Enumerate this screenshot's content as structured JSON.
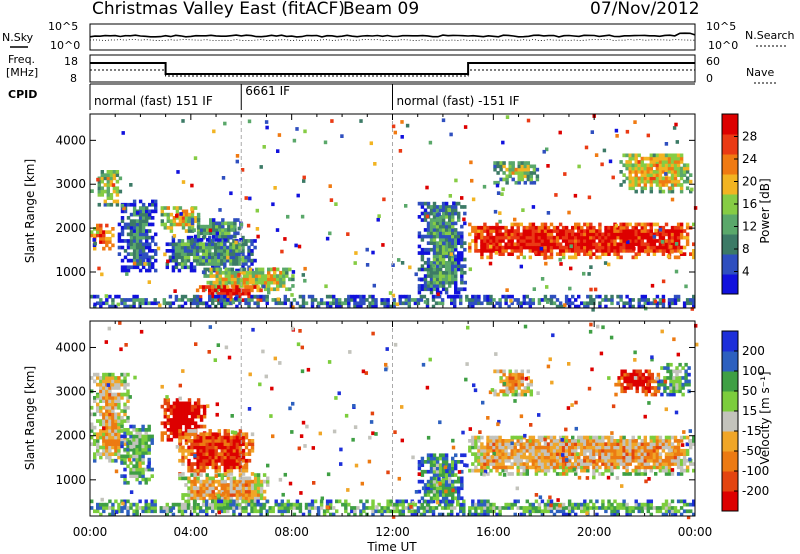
{
  "header": {
    "title": "Christmas Valley East (fitACF)",
    "beam": "Beam 09",
    "date": "07/Nov/2012"
  },
  "summary_panels": {
    "nsky_label": "N.Sky",
    "nsearch_label": "N.Search",
    "noise_ticks": [
      "10^5",
      "10^0"
    ],
    "freq_label_line1": "Freq.",
    "freq_label_line2": "[MHz]",
    "freq_ticks": [
      "18",
      "8"
    ],
    "nave_label": "Nave",
    "nave_ticks": [
      "60",
      "0"
    ],
    "cpid_label": "CPID",
    "cpid_segments": [
      {
        "label": "normal (fast) 151 IF",
        "start_hour": 0,
        "end_hour": 6
      },
      {
        "label": "6661 IF",
        "start_hour": 6,
        "end_hour": 12
      },
      {
        "label": "normal (fast) -151 IF",
        "start_hour": 12,
        "end_hour": 24
      }
    ]
  },
  "colors": {
    "power_scale": [
      "#1111dd",
      "#2f4fbf",
      "#3c7a66",
      "#5aa86a",
      "#86cc44",
      "#f2b422",
      "#f07a12",
      "#ea3a14",
      "#dd0000"
    ],
    "velocity_scale": [
      "#1d2fd9",
      "#2d60bf",
      "#3f9f44",
      "#7ccd3c",
      "#c3c3bc",
      "#f0a628",
      "#ec7a12",
      "#e3440f",
      "#dd0000"
    ],
    "ground_scatter": "#c3c3bc"
  },
  "chart_data": [
    {
      "type": "heatmap",
      "panel": "power",
      "xlabel": "",
      "ylabel": "Slant Range [km]",
      "xlim": [
        0,
        24
      ],
      "ylim": [
        180,
        4600
      ],
      "yticks": [
        "1000",
        "2000",
        "3000",
        "4000"
      ],
      "colorbar": {
        "label": "Power [dB]",
        "ticks": [
          "4",
          "8",
          "12",
          "16",
          "20",
          "24",
          "28"
        ],
        "range": [
          0,
          32
        ]
      },
      "regions": [
        {
          "t0": 0.0,
          "t1": 0.9,
          "r0": 1500,
          "r1": 2100,
          "level": 0.75
        },
        {
          "t0": 0.3,
          "t1": 1.2,
          "r0": 2500,
          "r1": 3300,
          "level": 0.5
        },
        {
          "t0": 1.1,
          "t1": 2.6,
          "r0": 1000,
          "r1": 2600,
          "level": 0.15
        },
        {
          "t0": 2.8,
          "t1": 4.3,
          "r0": 1900,
          "r1": 2500,
          "level": 0.55
        },
        {
          "t0": 3.0,
          "t1": 6.5,
          "r0": 1000,
          "r1": 1800,
          "level": 0.2
        },
        {
          "t0": 4.0,
          "t1": 6.0,
          "r0": 1700,
          "r1": 2200,
          "level": 0.25
        },
        {
          "t0": 4.5,
          "t1": 8.0,
          "r0": 500,
          "r1": 1100,
          "level": 0.45
        },
        {
          "t0": 4.2,
          "t1": 6.8,
          "r0": 250,
          "r1": 700,
          "level": 0.85
        },
        {
          "t0": 0.0,
          "t1": 24.0,
          "r0": 180,
          "r1": 420,
          "level": 0.25
        },
        {
          "t0": 13.0,
          "t1": 14.9,
          "r0": 500,
          "r1": 2600,
          "level": 0.2
        },
        {
          "t0": 15.0,
          "t1": 23.9,
          "r0": 1300,
          "r1": 2100,
          "level": 0.8
        },
        {
          "t0": 16.0,
          "t1": 17.7,
          "r0": 3000,
          "r1": 3500,
          "level": 0.4
        },
        {
          "t0": 21.0,
          "t1": 23.8,
          "r0": 2800,
          "r1": 3700,
          "level": 0.5
        }
      ]
    },
    {
      "type": "heatmap",
      "panel": "velocity",
      "xlabel": "Time UT",
      "ylabel": "Slant Range [km]",
      "xlim": [
        0,
        24
      ],
      "ylim": [
        180,
        4600
      ],
      "xticks": [
        "00:00",
        "04:00",
        "08:00",
        "12:00",
        "16:00",
        "20:00",
        "00:00"
      ],
      "yticks": [
        "1000",
        "2000",
        "3000",
        "4000"
      ],
      "colorbar": {
        "label": "Velocity [m s⁻¹]",
        "ticks": [
          "200",
          "100",
          "50",
          "15",
          "-15",
          "-50",
          "-100",
          "-200"
        ],
        "range": [
          -250,
          250
        ]
      },
      "regions": [
        {
          "t0": 0.0,
          "t1": 1.5,
          "r0": 1400,
          "r1": 3400,
          "level": 0.5
        },
        {
          "t0": 1.2,
          "t1": 2.5,
          "r0": 900,
          "r1": 2200,
          "level": 0.3
        },
        {
          "t0": 2.8,
          "t1": 4.5,
          "r0": 1800,
          "r1": 2800,
          "level": 0.95
        },
        {
          "t0": 3.5,
          "t1": 6.5,
          "r0": 1100,
          "r1": 2100,
          "level": 0.75
        },
        {
          "t0": 3.5,
          "t1": 7.0,
          "r0": 400,
          "r1": 1100,
          "level": 0.5
        },
        {
          "t0": 0.0,
          "t1": 24.0,
          "r0": 180,
          "r1": 500,
          "level": 0.3
        },
        {
          "t0": 13.0,
          "t1": 14.8,
          "r0": 400,
          "r1": 1600,
          "level": 0.2
        },
        {
          "t0": 15.0,
          "t1": 23.9,
          "r0": 1100,
          "r1": 2000,
          "level": 0.5
        },
        {
          "t0": 16.0,
          "t1": 17.5,
          "r0": 2900,
          "r1": 3500,
          "level": 0.6
        },
        {
          "t0": 20.8,
          "t1": 22.5,
          "r0": 2900,
          "r1": 3500,
          "level": 0.9
        },
        {
          "t0": 22.5,
          "t1": 23.8,
          "r0": 2900,
          "r1": 3600,
          "level": 0.3
        }
      ]
    }
  ]
}
